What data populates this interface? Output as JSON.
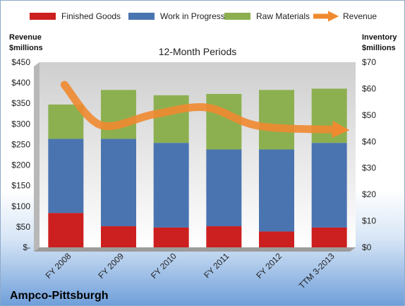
{
  "chart_data": {
    "type": "bar",
    "stacked": true,
    "title": "12-Month Periods",
    "company": "Ampco-Pittsburgh",
    "categories": [
      "FY 2008",
      "FY 2009",
      "FY 2010",
      "FY 2011",
      "FY 2012",
      "TTM 3-2013"
    ],
    "series": [
      {
        "name": "Finished Goods",
        "axis": "right",
        "color": "#cc1f1f",
        "values": [
          13,
          8,
          7.5,
          8,
          6,
          7.5
        ]
      },
      {
        "name": "Work in Progress",
        "axis": "right",
        "color": "#4a74b0",
        "values": [
          28,
          33,
          32,
          29,
          31,
          32
        ]
      },
      {
        "name": "Raw Materials",
        "axis": "right",
        "color": "#8cb050",
        "values": [
          13,
          18.5,
          18,
          21,
          22.5,
          20.5
        ]
      },
      {
        "name": "Revenue",
        "axis": "left",
        "type": "line",
        "color": "#f08a30",
        "values": [
          395,
          297,
          323,
          340,
          295,
          286
        ]
      }
    ],
    "left_axis": {
      "label_line1": "Revenue",
      "label_line2": "$millions",
      "ylim": [
        0,
        450
      ],
      "ticks": [
        "$-",
        "$50",
        "$100",
        "$150",
        "$200",
        "$250",
        "$300",
        "$350",
        "$400",
        "$450"
      ]
    },
    "right_axis": {
      "label_line1": "Inventory",
      "label_line2": "$millions",
      "ylim": [
        0,
        70
      ],
      "ticks": [
        "$0",
        "$10",
        "$20",
        "$30",
        "$40",
        "$50",
        "$60",
        "$70"
      ]
    },
    "legend_position": "top",
    "grid": false
  }
}
